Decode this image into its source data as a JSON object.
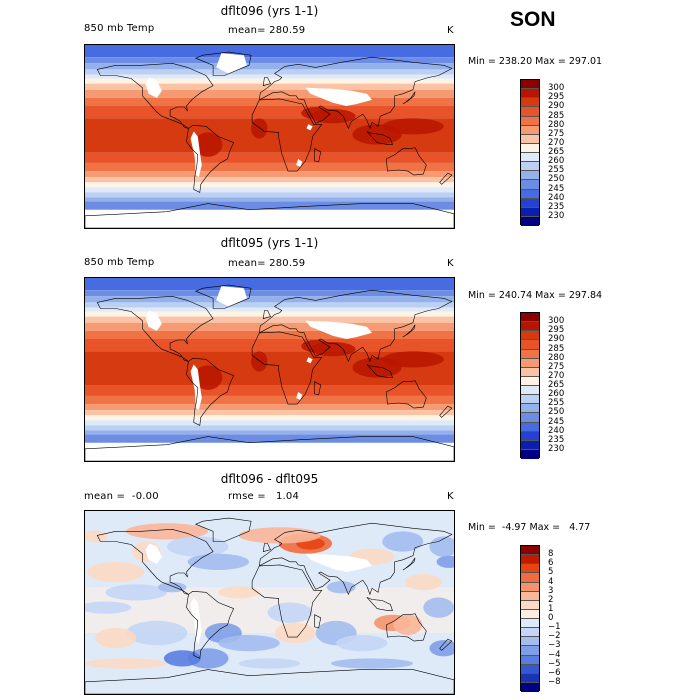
{
  "season": "SON",
  "panels": [
    {
      "title": "dflt096 (yrs 1-1)",
      "left_label": "850 mb Temp",
      "stat_label": "mean=",
      "stat_value": "280.59",
      "units": "K",
      "min_label": "Min =",
      "min_value": "238.20",
      "max_label": "Max =",
      "max_value": "297.01",
      "colorbar_ticks": [
        "300",
        "295",
        "290",
        "285",
        "280",
        "275",
        "270",
        "265",
        "260",
        "255",
        "250",
        "245",
        "240",
        "235",
        "230"
      ]
    },
    {
      "title": "dflt095 (yrs 1-1)",
      "left_label": "850 mb Temp",
      "stat_label": "mean=",
      "stat_value": "280.59",
      "units": "K",
      "min_label": "Min =",
      "min_value": "240.74",
      "max_label": "Max =",
      "max_value": "297.84",
      "colorbar_ticks": [
        "300",
        "295",
        "290",
        "285",
        "280",
        "275",
        "270",
        "265",
        "260",
        "255",
        "250",
        "245",
        "240",
        "235",
        "230"
      ]
    },
    {
      "title": "dflt096 - dflt095",
      "left_label": "mean =",
      "left_value": "-0.00",
      "stat_label": "rmse =",
      "stat_value": "1.04",
      "units": "K",
      "min_label": "Min =",
      "min_value": "-4.97",
      "max_label": "Max =",
      "max_value": "4.77",
      "colorbar_ticks": [
        "8",
        "6",
        "5",
        "4",
        "3",
        "2",
        "1",
        "0",
        "−1",
        "−2",
        "−3",
        "−4",
        "−5",
        "−6",
        "−8"
      ]
    }
  ],
  "colors": {
    "temp_scale": [
      "#8b0000",
      "#b81500",
      "#d63a10",
      "#e8532a",
      "#f07346",
      "#f59a72",
      "#fac3a6",
      "#fff3e6",
      "#dfeaf9",
      "#bcd0f4",
      "#95b1ec",
      "#6c8de3",
      "#476be0",
      "#2640d0",
      "#0a1fb0",
      "#000080"
    ],
    "diff_scale": [
      "#8b0000",
      "#c11a00",
      "#e64512",
      "#f06b3e",
      "#f5936c",
      "#f9b699",
      "#fcd9c4",
      "#fdeee3",
      "#dfeaf9",
      "#c4d5f5",
      "#a3bdf0",
      "#7f9ee8",
      "#5a7ee0",
      "#3558d2",
      "#1a34b6",
      "#000080"
    ],
    "frame": "#000000",
    "land_outline": "#000000"
  },
  "chart_data": [
    {
      "type": "heatmap",
      "title": "dflt096 (yrs 1-1)",
      "variable": "850 mb Temp",
      "units": "K",
      "mean": 280.59,
      "min": 238.2,
      "max": 297.01,
      "contour_levels": [
        230,
        235,
        240,
        245,
        250,
        255,
        260,
        265,
        270,
        275,
        280,
        285,
        290,
        295,
        300
      ],
      "xlim": [
        -180,
        180
      ],
      "ylim": [
        -90,
        90
      ]
    },
    {
      "type": "heatmap",
      "title": "dflt095 (yrs 1-1)",
      "variable": "850 mb Temp",
      "units": "K",
      "mean": 280.59,
      "min": 240.74,
      "max": 297.84,
      "contour_levels": [
        230,
        235,
        240,
        245,
        250,
        255,
        260,
        265,
        270,
        275,
        280,
        285,
        290,
        295,
        300
      ],
      "xlim": [
        -180,
        180
      ],
      "ylim": [
        -90,
        90
      ]
    },
    {
      "type": "heatmap",
      "title": "dflt096 - dflt095",
      "units": "K",
      "mean": -0.0,
      "rmse": 1.04,
      "min": -4.97,
      "max": 4.77,
      "contour_levels": [
        -8,
        -6,
        -5,
        -4,
        -3,
        -2,
        -1,
        0,
        1,
        2,
        3,
        4,
        5,
        6,
        8
      ],
      "xlim": [
        -180,
        180
      ],
      "ylim": [
        -90,
        90
      ]
    }
  ]
}
